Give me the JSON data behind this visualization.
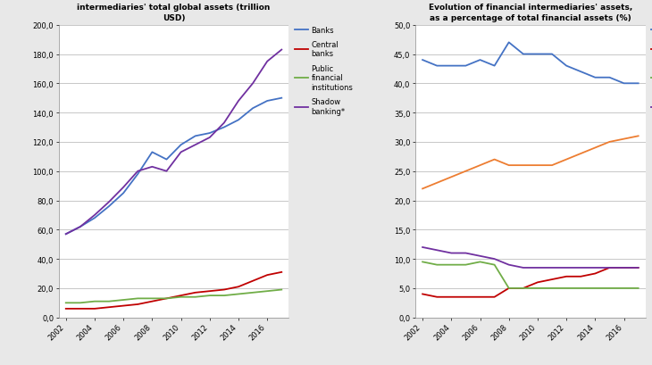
{
  "years": [
    2002,
    2003,
    2004,
    2005,
    2006,
    2007,
    2008,
    2009,
    2010,
    2011,
    2012,
    2013,
    2014,
    2015,
    2016,
    2017
  ],
  "chart1_title": "Evolution of the value of financial\nintermediaries' total global assets (trillion\nUSD)",
  "chart1": {
    "banks": [
      57,
      62,
      68,
      76,
      85,
      98,
      113,
      108,
      118,
      124,
      126,
      130,
      135,
      143,
      148,
      150
    ],
    "central_banks": [
      6,
      6,
      6,
      7,
      8,
      9,
      11,
      13,
      15,
      17,
      18,
      19,
      21,
      25,
      29,
      31
    ],
    "public_fi": [
      10,
      10,
      11,
      11,
      12,
      13,
      13,
      13,
      14,
      14,
      15,
      15,
      16,
      17,
      18,
      19
    ],
    "shadow": [
      57,
      62,
      70,
      79,
      89,
      100,
      103,
      100,
      113,
      118,
      123,
      133,
      148,
      160,
      175,
      183
    ]
  },
  "chart2_title": "Evolution of financial intermediaries' assets,\nas a percentage of total financial assets (%)",
  "chart2": {
    "banks": [
      44,
      43,
      43,
      43,
      44,
      43,
      47,
      45,
      45,
      45,
      43,
      42,
      41,
      41,
      40,
      40
    ],
    "central_banks": [
      4,
      3.5,
      3.5,
      3.5,
      3.5,
      3.5,
      5,
      5,
      6,
      6.5,
      7,
      7,
      7.5,
      8.5,
      8.5,
      8.5
    ],
    "public_fi": [
      9.5,
      9,
      9,
      9,
      9.5,
      9,
      5,
      5,
      5,
      5,
      5,
      5,
      5,
      5,
      5,
      5
    ],
    "insurance": [
      12,
      11.5,
      11,
      11,
      10.5,
      10,
      9,
      8.5,
      8.5,
      8.5,
      8.5,
      8.5,
      8.5,
      8.5,
      8.5,
      8.5
    ],
    "shadow_other": [
      22,
      23,
      24,
      25,
      26,
      27,
      26,
      26,
      26,
      26,
      27,
      28,
      29,
      30,
      30.5,
      31
    ]
  },
  "colors": {
    "banks": "#4472C4",
    "central_banks": "#C00000",
    "public_fi": "#70AD47",
    "shadow": "#7030A0",
    "insurance": "#7030A0",
    "shadow_other": "#ED7D31"
  },
  "chart1_ylim": [
    0,
    200
  ],
  "chart1_yticks": [
    0,
    20,
    40,
    60,
    80,
    100,
    120,
    140,
    160,
    180,
    200
  ],
  "chart2_ylim": [
    0,
    50
  ],
  "chart2_yticks": [
    0,
    5,
    10,
    15,
    20,
    25,
    30,
    35,
    40,
    45,
    50
  ],
  "xtick_years": [
    2002,
    2004,
    2006,
    2008,
    2010,
    2012,
    2014,
    2016
  ]
}
